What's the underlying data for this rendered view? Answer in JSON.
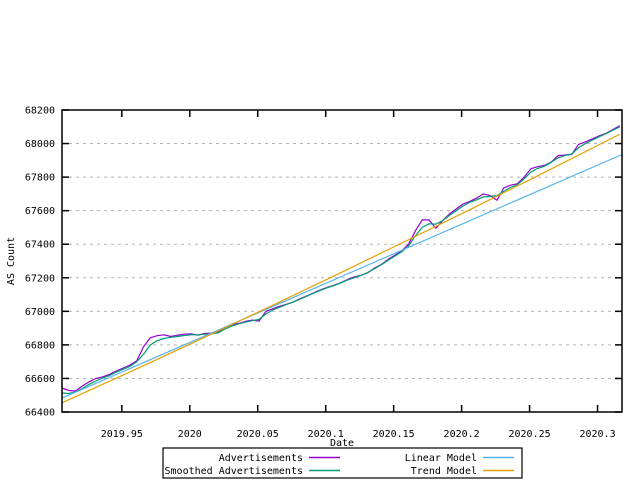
{
  "figure": {
    "background": "#ffffff",
    "border_color": "#000000",
    "grid_color": "#b3b3b3"
  },
  "chart_data": {
    "type": "line",
    "title": "",
    "xlabel": "Date",
    "ylabel": "AS Count",
    "xlim": [
      2019.906,
      2020.318
    ],
    "ylim": [
      66400,
      68200
    ],
    "xticks": [
      2019.95,
      2020,
      2020.05,
      2020.1,
      2020.15,
      2020.2,
      2020.25,
      2020.3
    ],
    "xtick_labels": [
      "2019.95",
      "2020",
      "2020.05",
      "2020.1",
      "2020.15",
      "2020.2",
      "2020.25",
      "2020.3"
    ],
    "yticks": [
      66400,
      66600,
      66800,
      67000,
      67200,
      67400,
      67600,
      67800,
      68000,
      68200
    ],
    "ytick_labels": [
      "66400",
      "66600",
      "66800",
      "67000",
      "67200",
      "67400",
      "67600",
      "67800",
      "68000",
      "68200"
    ],
    "grid": "horizontal-dashed",
    "legend_position": "bottom-center-boxed",
    "x_start": 2019.906,
    "x_step": 0.005,
    "series": [
      {
        "name": "Advertisements",
        "color": "#9400d3",
        "y": [
          66543,
          66528,
          66525,
          66555,
          66580,
          66600,
          66610,
          66625,
          66645,
          66662,
          66680,
          66705,
          66790,
          66842,
          66855,
          66860,
          66850,
          66858,
          66864,
          66866,
          66858,
          66868,
          66870,
          66878,
          66905,
          66920,
          66928,
          66940,
          66948,
          66942,
          67000,
          67015,
          67030,
          67042,
          67055,
          67075,
          67092,
          67110,
          67128,
          67142,
          67155,
          67170,
          67190,
          67205,
          67215,
          67230,
          67258,
          67280,
          67310,
          67335,
          67360,
          67400,
          67480,
          67545,
          67545,
          67495,
          67540,
          67580,
          67610,
          67640,
          67655,
          67675,
          67700,
          67690,
          67662,
          67735,
          67752,
          67760,
          67800,
          67850,
          67862,
          67870,
          67890,
          67928,
          67932,
          67935,
          67995,
          68010,
          68028,
          68045,
          68060,
          68082,
          68105
        ]
      },
      {
        "name": "Smoothed Advertisements",
        "color": "#009e73",
        "y": [
          66513,
          66510,
          66520,
          66540,
          66565,
          66585,
          66602,
          66618,
          66638,
          66655,
          66672,
          66700,
          66745,
          66800,
          66825,
          66838,
          66845,
          66850,
          66856,
          66860,
          66860,
          66863,
          66866,
          66872,
          66895,
          66912,
          66925,
          66936,
          66944,
          66952,
          66985,
          67008,
          67024,
          67040,
          67055,
          67072,
          67090,
          67108,
          67125,
          67140,
          67153,
          67168,
          67186,
          67200,
          67214,
          67232,
          67255,
          67278,
          67305,
          67330,
          67355,
          67390,
          67450,
          67500,
          67522,
          67520,
          67540,
          67572,
          67600,
          67628,
          67650,
          67665,
          67682,
          67685,
          67690,
          67715,
          67738,
          67755,
          67790,
          67830,
          67852,
          67865,
          67888,
          67915,
          67928,
          67938,
          67975,
          68000,
          68020,
          68040,
          68058,
          68078,
          68098
        ]
      },
      {
        "name": "Linear Model",
        "color": "#56b4e9",
        "x": [
          2019.906,
          2020.318
        ],
        "y": [
          66483,
          67935
        ]
      },
      {
        "name": "Trend Model",
        "color": "#e69f00",
        "x": [
          2019.906,
          2019.956,
          2020.006,
          2020.056,
          2020.106,
          2020.156,
          2020.206,
          2020.256,
          2020.306,
          2020.316
        ],
        "y": [
          66455,
          66639,
          66827,
          67017,
          67210,
          67407,
          67606,
          67808,
          68013,
          68054
        ]
      }
    ]
  },
  "legend": {
    "entries": [
      {
        "label": "Advertisements",
        "color": "#9400d3"
      },
      {
        "label": "Smoothed Advertisements",
        "color": "#009e73"
      },
      {
        "label": "Linear Model",
        "color": "#56b4e9"
      },
      {
        "label": "Trend Model",
        "color": "#e69f00"
      }
    ]
  }
}
